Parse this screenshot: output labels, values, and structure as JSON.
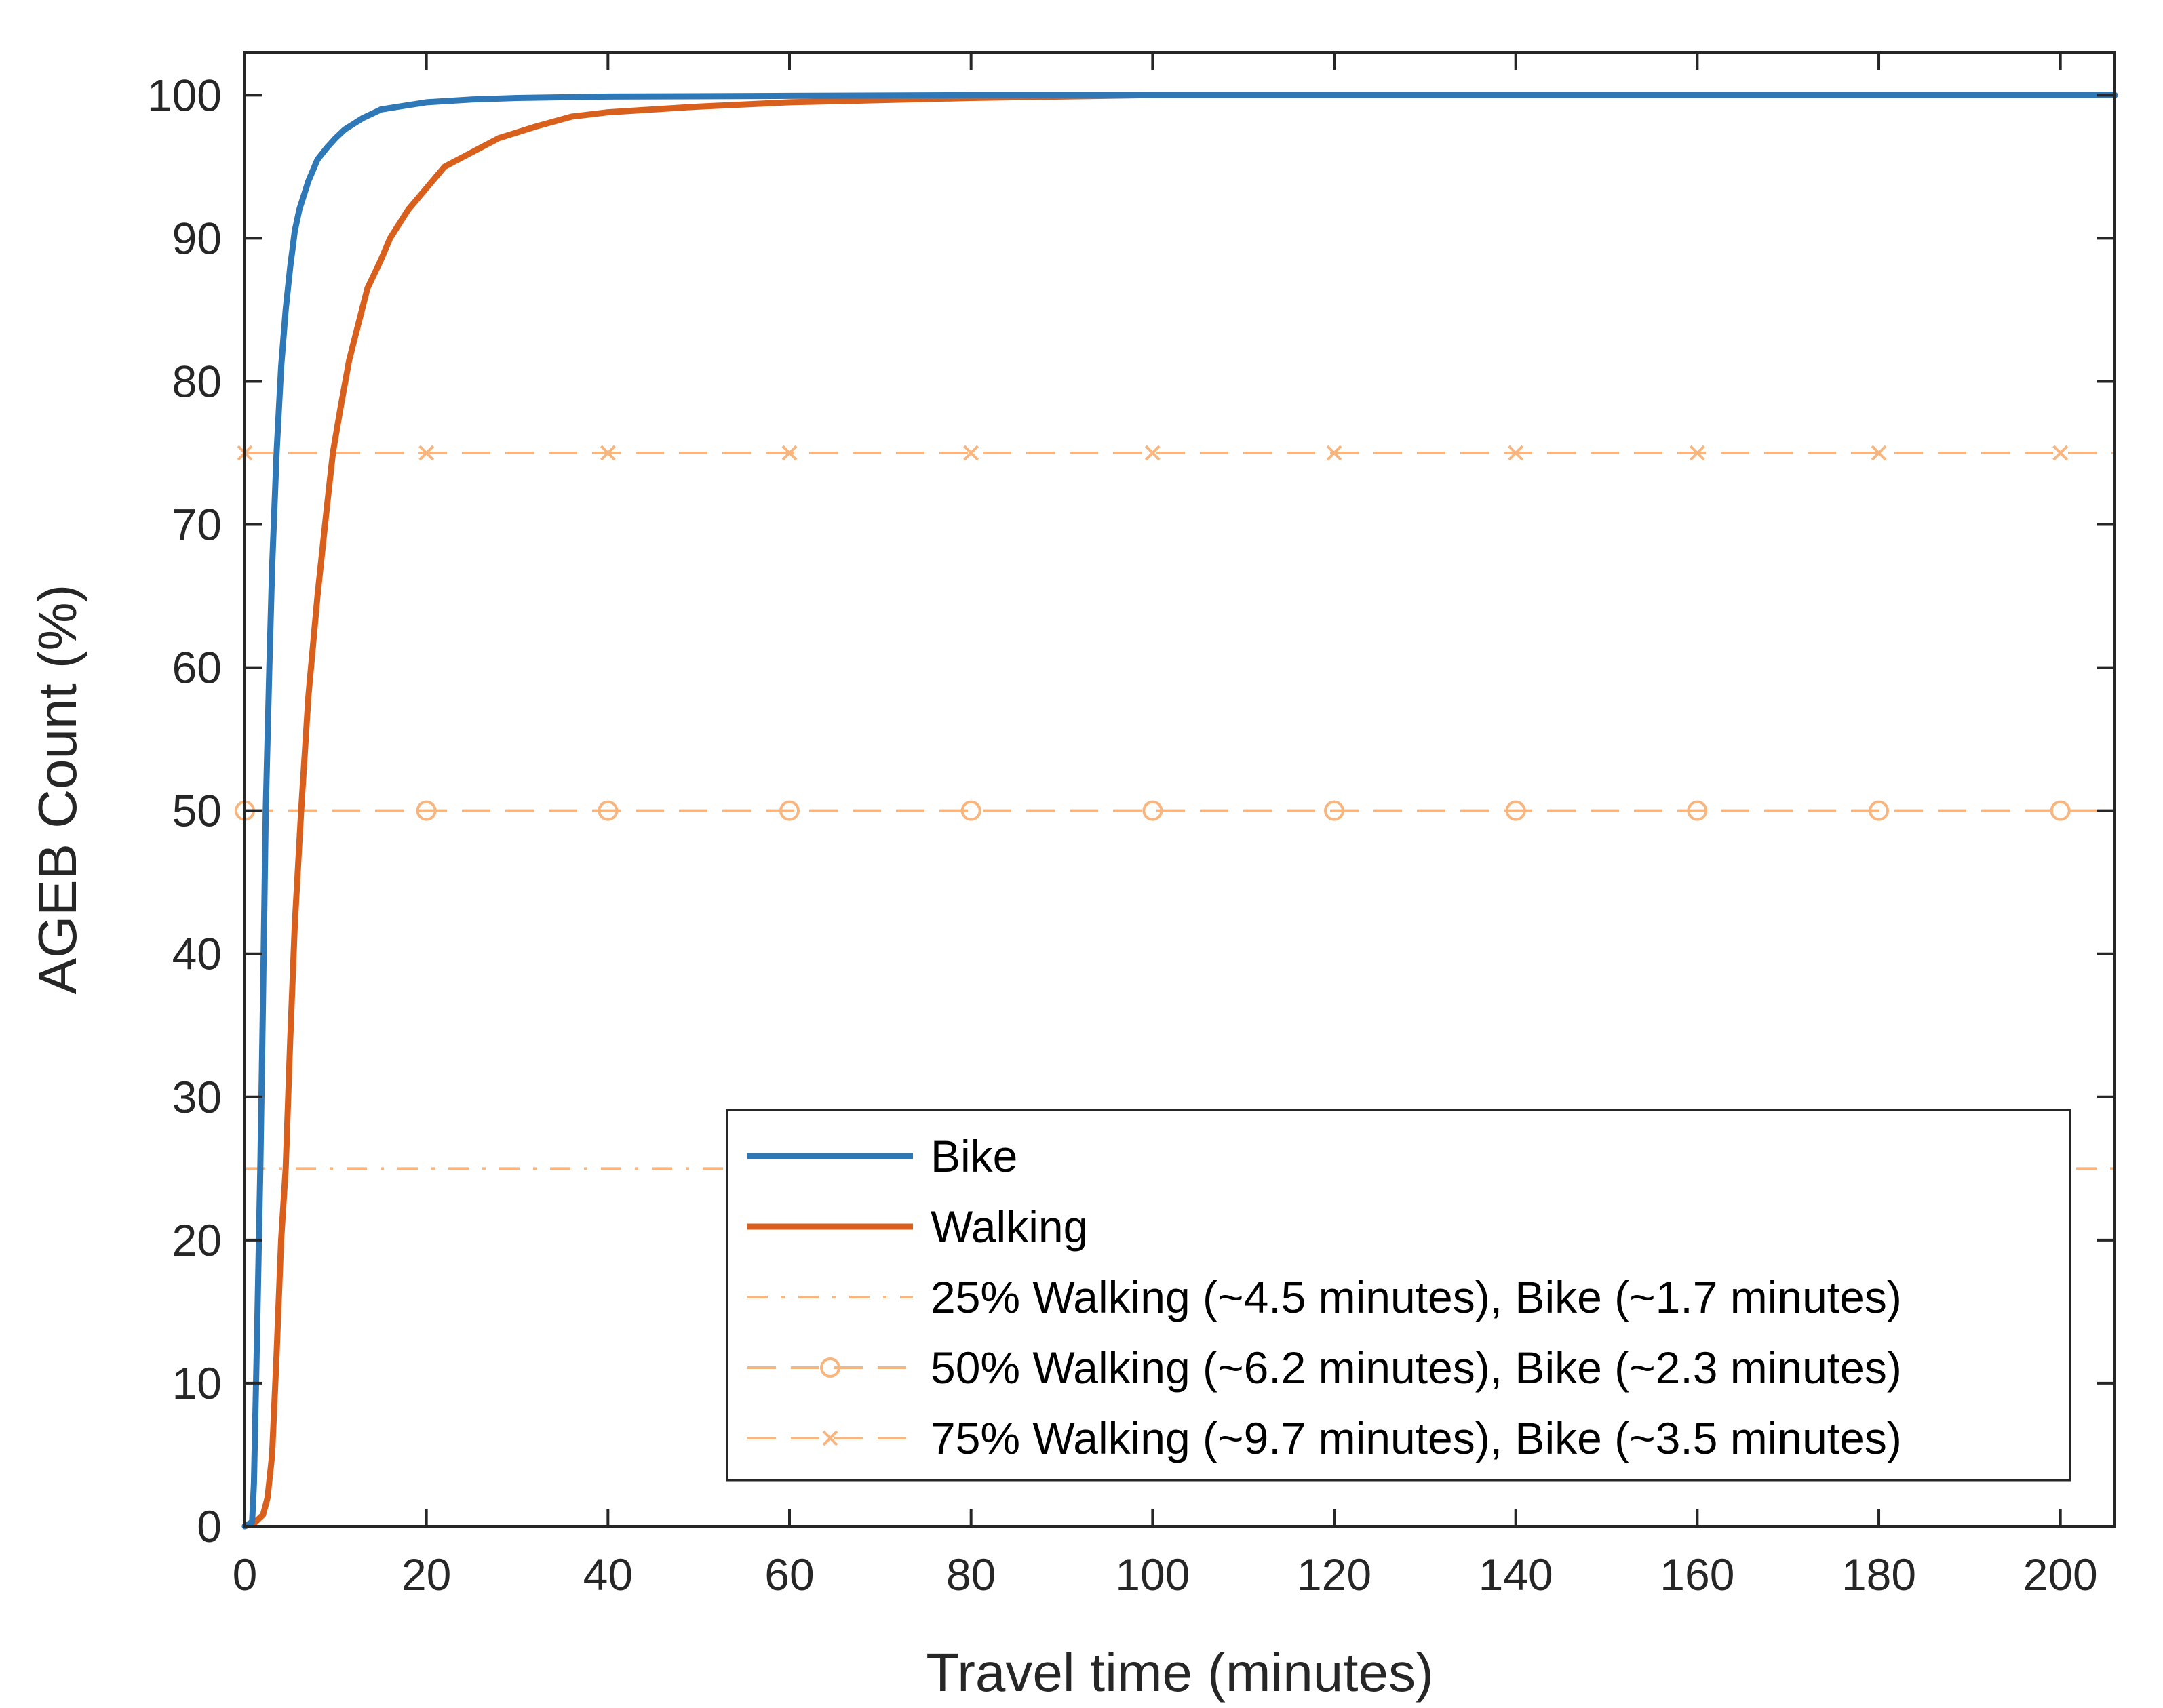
{
  "chart_data": {
    "type": "line",
    "title": "",
    "xlabel": "Travel time (minutes)",
    "ylabel": "AGEB Count (%)",
    "xlim": [
      0,
      206
    ],
    "ylim": [
      0,
      103
    ],
    "xticks": [
      0,
      20,
      40,
      60,
      80,
      100,
      120,
      140,
      160,
      180,
      200
    ],
    "yticks": [
      0,
      10,
      20,
      30,
      40,
      50,
      60,
      70,
      80,
      90,
      100
    ],
    "xtick_labels": [
      "0",
      "20",
      "40",
      "60",
      "80",
      "100",
      "120",
      "140",
      "160",
      "180",
      "200"
    ],
    "ytick_labels": [
      "0",
      "10",
      "20",
      "30",
      "40",
      "50",
      "60",
      "70",
      "80",
      "90",
      "100"
    ],
    "legend_position": "bottom-right",
    "series": [
      {
        "name": "Bike",
        "color": "#2e78b7",
        "style": "solid-thick",
        "x": [
          0,
          0.8,
          1.0,
          1.3,
          1.7,
          2.0,
          2.3,
          2.7,
          3.0,
          3.5,
          4.0,
          4.5,
          5.0,
          5.5,
          6.0,
          7.0,
          8.0,
          9.0,
          10.0,
          11.0,
          12.0,
          13.0,
          14.0,
          15.0,
          17.0,
          20.0,
          25.0,
          30.0,
          40.0,
          60.0,
          80.0,
          100.0,
          206.0
        ],
        "y": [
          0,
          0.3,
          3,
          12,
          25,
          37,
          50,
          60,
          67,
          75,
          81,
          85,
          88,
          90.5,
          92,
          94,
          95.5,
          96.3,
          97,
          97.6,
          98,
          98.4,
          98.7,
          99,
          99.2,
          99.5,
          99.7,
          99.8,
          99.9,
          99.95,
          100,
          100,
          100
        ]
      },
      {
        "name": "Walking",
        "color": "#d95f1c",
        "style": "solid-thick",
        "x": [
          0,
          1.0,
          2.0,
          2.5,
          3.0,
          3.5,
          4.0,
          4.5,
          5.0,
          5.5,
          6.2,
          7.0,
          8.0,
          9.0,
          9.7,
          10.5,
          11.5,
          12.5,
          13.5,
          15.0,
          16.0,
          18.0,
          20.0,
          22.0,
          25.0,
          28.0,
          32.0,
          36.0,
          40.0,
          45.0,
          50.0,
          60.0,
          80.0,
          100.0,
          206.0
        ],
        "y": [
          0,
          0.2,
          0.8,
          2,
          5,
          12,
          20,
          25,
          34,
          42,
          50,
          58,
          65,
          71,
          75,
          78,
          81.5,
          84,
          86.5,
          88.5,
          90,
          92,
          93.5,
          95,
          96,
          97,
          97.8,
          98.5,
          98.8,
          99,
          99.2,
          99.5,
          99.8,
          100,
          100
        ]
      },
      {
        "name": "25% Walking (~4.5 minutes), Bike (~1.7 minutes)",
        "color": "#f9b57e",
        "style": "dash-dot",
        "x": [
          0,
          206
        ],
        "y": [
          25,
          25
        ]
      },
      {
        "name": "50% Walking (~6.2 minutes), Bike (~2.3 minutes)",
        "color": "#f9b57e",
        "style": "dashed",
        "marker": "circle",
        "marker_x": [
          0,
          20,
          40,
          60,
          80,
          100,
          120,
          140,
          160,
          180,
          200
        ],
        "x": [
          0,
          206
        ],
        "y": [
          50,
          50
        ]
      },
      {
        "name": "75% Walking (~9.7 minutes), Bike (~3.5 minutes)",
        "color": "#f9b57e",
        "style": "dashed",
        "marker": "x",
        "marker_x": [
          0,
          20,
          40,
          60,
          80,
          100,
          120,
          140,
          160,
          180,
          200
        ],
        "x": [
          0,
          206
        ],
        "y": [
          75,
          75
        ]
      }
    ]
  }
}
